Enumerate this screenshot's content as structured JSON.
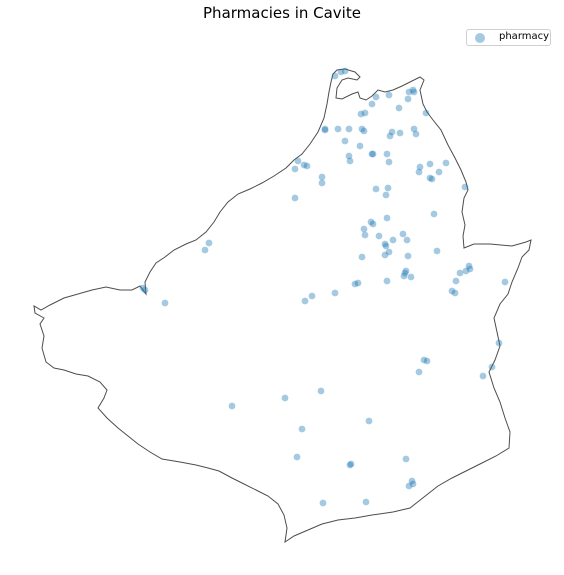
{
  "title": "Pharmacies in Cavite",
  "legend": {
    "label": "pharmacy"
  },
  "colors": {
    "point": "#1f77b4",
    "boundary": "#4d4d4d",
    "background": "#ffffff"
  },
  "chart_data": {
    "type": "scatter",
    "title": "Pharmacies in Cavite",
    "series": [
      {
        "name": "pharmacy",
        "marker": "circle",
        "opacity": 0.4
      }
    ],
    "grid": false,
    "axes_visible": false,
    "legend_placement": "top-right"
  }
}
